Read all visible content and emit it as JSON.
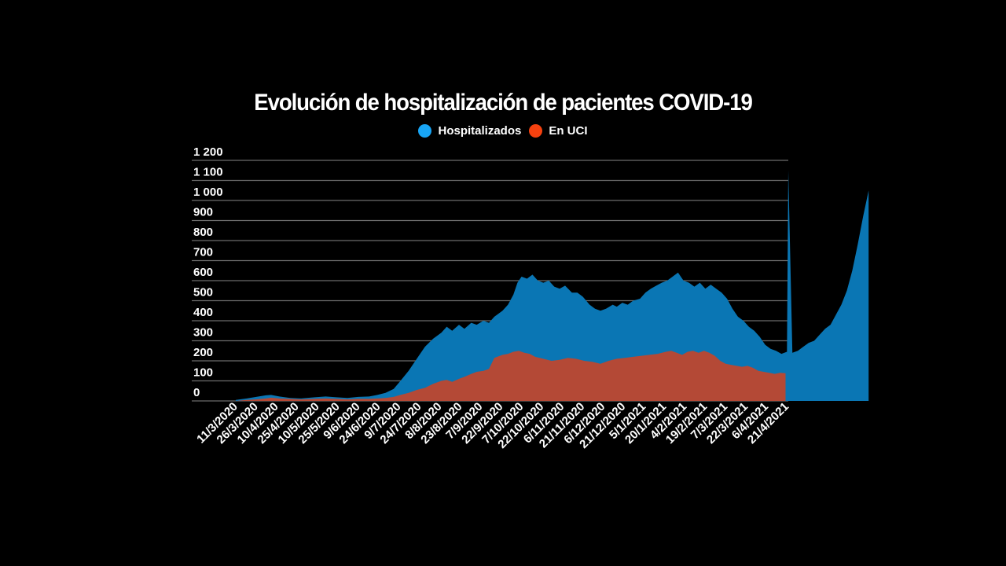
{
  "chart_data": {
    "type": "area",
    "title": "Evolución de hospitalización de pacientes COVID-19",
    "xlabel": "",
    "ylabel": "",
    "ylim": [
      0,
      1200
    ],
    "grid": true,
    "legend_position": "top-center",
    "y_ticks": [
      {
        "value": 0,
        "label": "0"
      },
      {
        "value": 100,
        "label": "100"
      },
      {
        "value": 200,
        "label": "200"
      },
      {
        "value": 300,
        "label": "300"
      },
      {
        "value": 400,
        "label": "400"
      },
      {
        "value": 500,
        "label": "500"
      },
      {
        "value": 600,
        "label": "600"
      },
      {
        "value": 700,
        "label": "700"
      },
      {
        "value": 800,
        "label": "800"
      },
      {
        "value": 900,
        "label": "900"
      },
      {
        "value": 1000,
        "label": "1 000"
      },
      {
        "value": 1100,
        "label": "1 100"
      },
      {
        "value": 1200,
        "label": "1 200"
      }
    ],
    "x_tick_labels": [
      "11/3/2020",
      "26/3/2020",
      "10/4/2020",
      "25/4/2020",
      "10/5/2020",
      "25/5/2020",
      "9/6/2020",
      "24/6/2020",
      "9/7/2020",
      "24/7/2020",
      "8/8/2020",
      "23/8/2020",
      "7/9/2020",
      "22/9/2020",
      "7/10/2020",
      "22/10/2020",
      "6/11/2020",
      "21/11/2020",
      "6/12/2020",
      "21/12/2020",
      "5/1/2021",
      "20/1/2021",
      "4/2/2021",
      "19/2/2021",
      "7/3/2021",
      "22/3/2021",
      "6/4/2021",
      "21/4/2021"
    ],
    "x_day_range": [
      0,
      406
    ],
    "series": [
      {
        "name": "Hospitalizados",
        "color": "#0a76b4",
        "legend_color": "#18a5f5",
        "points": [
          [
            0,
            5
          ],
          [
            8,
            12
          ],
          [
            15,
            20
          ],
          [
            22,
            28
          ],
          [
            26,
            30
          ],
          [
            32,
            22
          ],
          [
            40,
            15
          ],
          [
            48,
            12
          ],
          [
            58,
            18
          ],
          [
            66,
            22
          ],
          [
            74,
            18
          ],
          [
            82,
            15
          ],
          [
            90,
            20
          ],
          [
            98,
            22
          ],
          [
            104,
            30
          ],
          [
            110,
            40
          ],
          [
            116,
            60
          ],
          [
            121,
            100
          ],
          [
            127,
            150
          ],
          [
            133,
            210
          ],
          [
            139,
            270
          ],
          [
            145,
            310
          ],
          [
            151,
            340
          ],
          [
            155,
            370
          ],
          [
            159,
            350
          ],
          [
            164,
            380
          ],
          [
            168,
            360
          ],
          [
            173,
            390
          ],
          [
            177,
            380
          ],
          [
            182,
            400
          ],
          [
            186,
            390
          ],
          [
            190,
            420
          ],
          [
            196,
            450
          ],
          [
            200,
            480
          ],
          [
            204,
            530
          ],
          [
            207,
            590
          ],
          [
            210,
            620
          ],
          [
            214,
            610
          ],
          [
            218,
            630
          ],
          [
            222,
            600
          ],
          [
            226,
            590
          ],
          [
            230,
            600
          ],
          [
            234,
            570
          ],
          [
            238,
            560
          ],
          [
            242,
            575
          ],
          [
            247,
            540
          ],
          [
            251,
            540
          ],
          [
            255,
            520
          ],
          [
            260,
            480
          ],
          [
            264,
            460
          ],
          [
            268,
            450
          ],
          [
            272,
            460
          ],
          [
            277,
            480
          ],
          [
            280,
            470
          ],
          [
            284,
            490
          ],
          [
            288,
            480
          ],
          [
            292,
            500
          ],
          [
            297,
            510
          ],
          [
            301,
            540
          ],
          [
            305,
            560
          ],
          [
            309,
            575
          ],
          [
            313,
            590
          ],
          [
            317,
            600
          ],
          [
            321,
            620
          ],
          [
            325,
            640
          ],
          [
            329,
            600
          ],
          [
            333,
            590
          ],
          [
            337,
            570
          ],
          [
            341,
            590
          ],
          [
            345,
            560
          ],
          [
            349,
            580
          ],
          [
            353,
            560
          ],
          [
            357,
            540
          ],
          [
            361,
            510
          ],
          [
            365,
            460
          ],
          [
            369,
            420
          ],
          [
            373,
            400
          ],
          [
            377,
            370
          ],
          [
            381,
            350
          ],
          [
            385,
            320
          ],
          [
            389,
            280
          ],
          [
            393,
            260
          ],
          [
            397,
            250
          ],
          [
            401,
            235
          ],
          [
            405,
            245
          ],
          [
            409,
            240
          ],
          [
            413,
            250
          ],
          [
            417,
            270
          ],
          [
            421,
            290
          ],
          [
            425,
            300
          ],
          [
            429,
            330
          ],
          [
            433,
            360
          ],
          [
            437,
            380
          ],
          [
            441,
            430
          ],
          [
            445,
            480
          ],
          [
            449,
            550
          ],
          [
            453,
            650
          ],
          [
            457,
            780
          ],
          [
            461,
            920
          ],
          [
            465,
            1050
          ],
          [
            406,
            1150
          ]
        ]
      },
      {
        "name": "En UCI",
        "color": "#b44936",
        "legend_color": "#f5410f",
        "points": [
          [
            0,
            0
          ],
          [
            8,
            5
          ],
          [
            15,
            8
          ],
          [
            22,
            12
          ],
          [
            26,
            16
          ],
          [
            32,
            12
          ],
          [
            40,
            10
          ],
          [
            48,
            8
          ],
          [
            58,
            10
          ],
          [
            66,
            12
          ],
          [
            74,
            10
          ],
          [
            82,
            8
          ],
          [
            90,
            10
          ],
          [
            98,
            10
          ],
          [
            104,
            12
          ],
          [
            110,
            15
          ],
          [
            116,
            20
          ],
          [
            121,
            30
          ],
          [
            127,
            40
          ],
          [
            133,
            55
          ],
          [
            139,
            65
          ],
          [
            145,
            85
          ],
          [
            151,
            100
          ],
          [
            155,
            105
          ],
          [
            159,
            95
          ],
          [
            164,
            110
          ],
          [
            168,
            120
          ],
          [
            173,
            135
          ],
          [
            177,
            145
          ],
          [
            182,
            150
          ],
          [
            186,
            160
          ],
          [
            190,
            215
          ],
          [
            196,
            230
          ],
          [
            200,
            235
          ],
          [
            204,
            245
          ],
          [
            208,
            250
          ],
          [
            212,
            240
          ],
          [
            216,
            235
          ],
          [
            220,
            220
          ],
          [
            226,
            210
          ],
          [
            232,
            200
          ],
          [
            238,
            205
          ],
          [
            244,
            215
          ],
          [
            250,
            210
          ],
          [
            256,
            200
          ],
          [
            262,
            195
          ],
          [
            268,
            185
          ],
          [
            274,
            200
          ],
          [
            280,
            210
          ],
          [
            286,
            215
          ],
          [
            292,
            220
          ],
          [
            298,
            225
          ],
          [
            304,
            230
          ],
          [
            310,
            235
          ],
          [
            316,
            245
          ],
          [
            320,
            250
          ],
          [
            324,
            240
          ],
          [
            328,
            230
          ],
          [
            332,
            245
          ],
          [
            336,
            250
          ],
          [
            340,
            240
          ],
          [
            344,
            250
          ],
          [
            348,
            240
          ],
          [
            352,
            225
          ],
          [
            356,
            200
          ],
          [
            360,
            185
          ],
          [
            364,
            180
          ],
          [
            368,
            175
          ],
          [
            372,
            170
          ],
          [
            376,
            175
          ],
          [
            380,
            165
          ],
          [
            384,
            150
          ],
          [
            388,
            145
          ],
          [
            392,
            140
          ],
          [
            396,
            135
          ],
          [
            400,
            140
          ],
          [
            404,
            138
          ]
        ]
      }
    ]
  },
  "legend": {
    "items": [
      {
        "label": "Hospitalizados",
        "color": "#18a5f5"
      },
      {
        "label": "En UCI",
        "color": "#f5410f"
      }
    ]
  }
}
